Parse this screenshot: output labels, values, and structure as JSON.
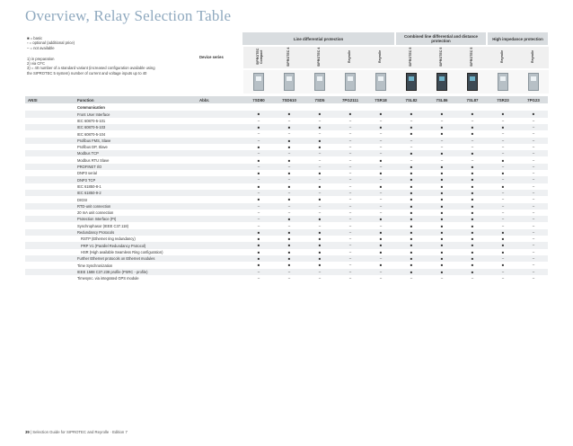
{
  "page": {
    "title": "Overview, Relay Selection Table",
    "footer_page": "39",
    "footer_text": "Selection Guide for SIPROTEC and Reyrolle · Edition 7"
  },
  "legend": [
    "■  = basic",
    "▫  = optional (additional price)",
    "–  = not available"
  ],
  "notes": [
    "1) in preparation",
    "2) via CFC",
    "3) = 40 number of a standard variant (increased configuration available using",
    "    the SIPROTEC 5 system) number of current and voltage inputs up to 40"
  ],
  "device_series_label": "Device series",
  "groups": [
    {
      "label": "Line differential protection"
    },
    {
      "label": "Combined line differential and distance protection"
    },
    {
      "label": "High impedance protection"
    }
  ],
  "devices": [
    "SIPROTEC Compact",
    "SIPROTEC 4",
    "SIPROTEC 4",
    "Reyrolle",
    "Reyrolle",
    "SIPROTEC 5",
    "SIPROTEC 5",
    "SIPROTEC 5",
    "Reyrolle",
    "Reyrolle"
  ],
  "header": {
    "ansi": "ANSI",
    "function": "Function",
    "abbr": "Abbr.",
    "models": [
      "7SD80",
      "7SD610",
      "7SD5",
      "7PG2111",
      "7SR18",
      "7SL82",
      "7SL86",
      "7SL87",
      "7SR23",
      "7PG23"
    ]
  },
  "rows": [
    {
      "label": "Communication",
      "style": "bold",
      "vals": [
        "",
        "",
        "",
        "",
        "",
        "",
        "",
        "",
        "",
        ""
      ]
    },
    {
      "label": "Front User Interface",
      "style": "",
      "vals": [
        "■",
        "■",
        "■",
        "■",
        "■",
        "■",
        "■",
        "■",
        "■",
        "■"
      ]
    },
    {
      "label": "IEC 60870-5-101",
      "style": "",
      "vals": [
        "–",
        "–",
        "–",
        "–",
        "–",
        "–",
        "–",
        "–",
        "–",
        "–"
      ]
    },
    {
      "label": "IEC 60870-5-103",
      "style": "",
      "vals": [
        "■",
        "■",
        "■",
        "–",
        "■",
        "■",
        "■",
        "■",
        "■",
        "–"
      ]
    },
    {
      "label": "IEC 60870-5-104",
      "style": "",
      "vals": [
        "–",
        "–",
        "–",
        "–",
        "–",
        "■",
        "■",
        "■",
        "–",
        "–"
      ]
    },
    {
      "label": "Profibus FMS, Slave",
      "style": "",
      "vals": [
        "–",
        "■",
        "■",
        "–",
        "–",
        "–",
        "–",
        "–",
        "–",
        "–"
      ]
    },
    {
      "label": "Profibus DP, Slave",
      "style": "",
      "vals": [
        "■",
        "■",
        "■",
        "–",
        "–",
        "–",
        "–",
        "–",
        "–",
        "–"
      ]
    },
    {
      "label": "Modbus TCP",
      "style": "",
      "vals": [
        "–",
        "–",
        "–",
        "–",
        "–",
        "■",
        "■",
        "■",
        "–",
        "–"
      ]
    },
    {
      "label": "Modbus RTU Slave",
      "style": "",
      "vals": [
        "■",
        "■",
        "–",
        "–",
        "■",
        "–",
        "–",
        "–",
        "■",
        "–"
      ]
    },
    {
      "label": "PROFINET I/O",
      "style": "",
      "vals": [
        "–",
        "–",
        "–",
        "–",
        "–",
        "■",
        "■",
        "■",
        "–",
        "–"
      ]
    },
    {
      "label": "DNP3 serial",
      "style": "",
      "vals": [
        "■",
        "■",
        "■",
        "–",
        "■",
        "■",
        "■",
        "■",
        "■",
        "–"
      ]
    },
    {
      "label": "DNP3 TCP",
      "style": "",
      "vals": [
        "–",
        "–",
        "–",
        "–",
        "–",
        "■",
        "■",
        "■",
        "–",
        "–"
      ]
    },
    {
      "label": "IEC 61850-8-1",
      "style": "",
      "vals": [
        "■",
        "■",
        "■",
        "–",
        "■",
        "■",
        "■",
        "■",
        "■",
        "–"
      ]
    },
    {
      "label": "IEC 61850-9-2",
      "style": "",
      "vals": [
        "–",
        "–",
        "–",
        "–",
        "–",
        "■",
        "■",
        "■",
        "–",
        "–"
      ]
    },
    {
      "label": "DIGSI",
      "style": "",
      "vals": [
        "■",
        "■",
        "■",
        "–",
        "–",
        "■",
        "■",
        "■",
        "–",
        "–"
      ]
    },
    {
      "label": "RTD-unit connection",
      "style": "",
      "vals": [
        "–",
        "–",
        "–",
        "–",
        "–",
        "■",
        "■",
        "■",
        "–",
        "–"
      ]
    },
    {
      "label": "20 mA unit connection",
      "style": "",
      "vals": [
        "–",
        "–",
        "–",
        "–",
        "–",
        "■",
        "■",
        "■",
        "–",
        "–"
      ]
    },
    {
      "label": "Protection Interface (PI)",
      "style": "",
      "vals": [
        "–",
        "■",
        "■",
        "–",
        "■",
        "■",
        "■",
        "■",
        "–",
        "–"
      ]
    },
    {
      "label": "Synchrophasor (IEEE C37.118)",
      "style": "",
      "vals": [
        "–",
        "–",
        "–",
        "–",
        "–",
        "■",
        "■",
        "■",
        "–",
        "–"
      ]
    },
    {
      "label": "Redundancy Protocols",
      "style": "",
      "vals": [
        "■",
        "■",
        "■",
        "–",
        "■",
        "■",
        "■",
        "■",
        "■",
        "–"
      ]
    },
    {
      "label": "RSTP (Ethernet ring redundancy)",
      "style": "sub",
      "vals": [
        "■",
        "■",
        "■",
        "–",
        "■",
        "■",
        "■",
        "■",
        "■",
        "–"
      ]
    },
    {
      "label": "PRP V1 (Parallel Redundancy Protocol)",
      "style": "sub",
      "vals": [
        "■",
        "■",
        "■",
        "–",
        "■",
        "■",
        "■",
        "■",
        "■",
        "–"
      ]
    },
    {
      "label": "HSR (High available Seamless Ring configuration)",
      "style": "sub",
      "vals": [
        "■",
        "■",
        "■",
        "–",
        "■",
        "■",
        "■",
        "■",
        "■",
        "–"
      ]
    },
    {
      "label": "Further Ethernet protocols on Ethernet modules",
      "style": "",
      "vals": [
        "■",
        "■",
        "■",
        "–",
        "–",
        "■",
        "■",
        "■",
        "–",
        "–"
      ]
    },
    {
      "label": "Time Synchronization",
      "style": "",
      "vals": [
        "■",
        "■",
        "■",
        "–",
        "■",
        "■",
        "■",
        "■",
        "■",
        "–"
      ]
    },
    {
      "label": "IEEE 1588 C37.238 profile (PSRC - profile)",
      "style": "",
      "vals": [
        "–",
        "–",
        "–",
        "–",
        "–",
        "■",
        "■",
        "■",
        "–",
        "–"
      ]
    },
    {
      "label": "Timesync. via integrated GPS module",
      "style": "",
      "vals": [
        "–",
        "–",
        "–",
        "–",
        "–",
        "–",
        "–",
        "–",
        "–",
        "–"
      ]
    }
  ]
}
